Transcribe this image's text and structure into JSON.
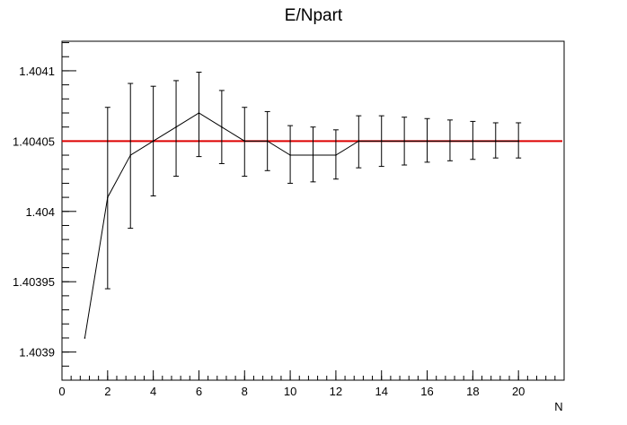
{
  "chart_data": {
    "type": "line",
    "title": "E/Npart",
    "xlabel": "N",
    "ylabel": "",
    "xlim": [
      0,
      22
    ],
    "ylim": [
      1.40388,
      1.404121
    ],
    "x_ticks": [
      0,
      2,
      4,
      6,
      8,
      10,
      12,
      14,
      16,
      18,
      20
    ],
    "x_tick_labels": [
      "0",
      "2",
      "4",
      "6",
      "8",
      "10",
      "12",
      "14",
      "16",
      "18",
      "20"
    ],
    "y_ticks": [
      1.4039,
      1.40395,
      1.404,
      1.40405,
      1.4041
    ],
    "y_tick_labels": [
      "1.4039",
      "1.40395",
      "1.404",
      "1.40405",
      "1.4041"
    ],
    "reference_line": {
      "y": 1.40405,
      "color": "#dd0000"
    },
    "series": [
      {
        "x": [
          1,
          2,
          3,
          4,
          5,
          6,
          7,
          8,
          9,
          10,
          11,
          12,
          13,
          14,
          15,
          16,
          17,
          18,
          19,
          20
        ],
        "values": [
          1.40391,
          1.40401,
          1.40404,
          1.40405,
          1.40406,
          1.40407,
          1.40406,
          1.40405,
          1.40405,
          1.40404,
          1.40404,
          1.40404,
          1.40405,
          1.40405,
          1.40405,
          1.40405,
          1.40405,
          1.40405,
          1.40405,
          1.40405
        ],
        "err_low": [
          1.40391,
          1.403945,
          1.403988,
          1.404011,
          1.404025,
          1.404039,
          1.404034,
          1.404025,
          1.404029,
          1.40402,
          1.404021,
          1.404023,
          1.404031,
          1.404032,
          1.404033,
          1.404035,
          1.404036,
          1.404037,
          1.404038,
          1.404038
        ],
        "err_high": [
          1.40391,
          1.404074,
          1.404091,
          1.404089,
          1.404093,
          1.404099,
          1.404086,
          1.404074,
          1.404071,
          1.404061,
          1.40406,
          1.404058,
          1.404068,
          1.404068,
          1.404067,
          1.404066,
          1.404065,
          1.404064,
          1.404063,
          1.404063
        ],
        "color": "#000000"
      }
    ],
    "grid": false,
    "legend": "none"
  }
}
